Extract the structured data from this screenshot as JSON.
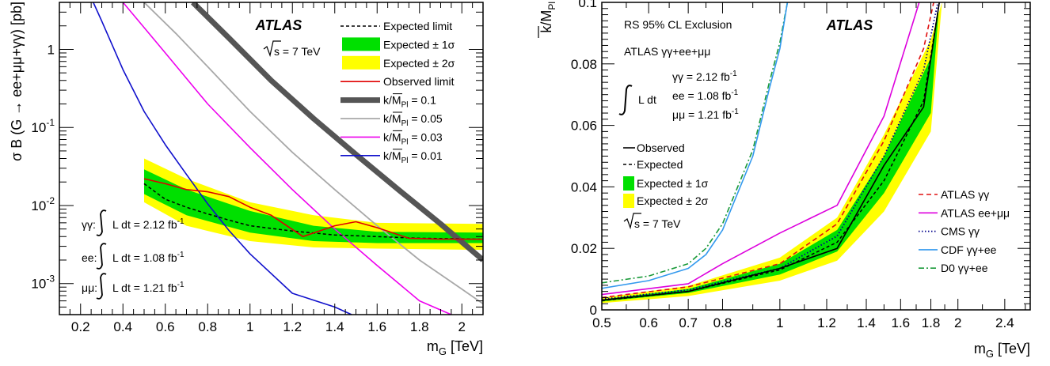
{
  "chart_data": [
    {
      "type": "line",
      "title": "",
      "xlabel": "m",
      "xlabel_sub": "G",
      "xlabel_unit": " [TeV]",
      "ylabel": "σ B (G → ee+μμ+γγ) [pb]",
      "xlim": [
        0.1,
        2.1
      ],
      "ylim": [
        0.0004,
        4
      ],
      "yscale": "log",
      "grid": false,
      "legend_position": "top-right",
      "x_ticks": [
        0.2,
        0.4,
        0.6,
        0.8,
        1,
        1.2,
        1.4,
        1.6,
        1.8,
        2
      ],
      "x_tick_labels": [
        "0.2",
        "0.4",
        "0.6",
        "0.8",
        "1",
        "1.2",
        "1.4",
        "1.6",
        "1.8",
        "2"
      ],
      "y_ticks": [
        {
          "value": 1,
          "base": "1",
          "exp": ""
        },
        {
          "value": 0.1,
          "base": "10",
          "exp": "-1"
        },
        {
          "value": 0.01,
          "base": "10",
          "exp": "-2"
        },
        {
          "value": 0.001,
          "base": "10",
          "exp": "-3"
        }
      ],
      "atlas_label": "ATLAS",
      "energy_label": "s = 7 TeV",
      "lumi_labels": [
        {
          "channel": "γγ:",
          "text": "L dt = 2.12 fb",
          "exp": "-1"
        },
        {
          "channel": "ee:",
          "text": "L dt = 1.08 fb",
          "exp": "-1"
        },
        {
          "channel": "μμ:",
          "text": "L dt = 1.21 fb",
          "exp": "-1"
        }
      ],
      "legend": [
        {
          "label": "Expected limit",
          "style": "dashed"
        },
        {
          "label": "Expected ± 1σ",
          "style": "box-green"
        },
        {
          "label": "Expected ± 2σ",
          "style": "box-yellow"
        },
        {
          "label": "Observed limit",
          "style": "red"
        },
        {
          "label": "k/M",
          "sub": "Pl",
          "suffix": " = 0.1",
          "style": "thick-grey"
        },
        {
          "label": "k/M",
          "sub": "Pl",
          "suffix": " = 0.05",
          "style": "light-grey"
        },
        {
          "label": "k/M",
          "sub": "Pl",
          "suffix": " = 0.03",
          "style": "magenta"
        },
        {
          "label": "k/M",
          "sub": "Pl",
          "suffix": " = 0.01",
          "style": "blue"
        }
      ],
      "band2": {
        "x": [
          0.5,
          0.7,
          1.0,
          1.3,
          1.6,
          2.1
        ],
        "low": [
          0.011,
          0.0055,
          0.0035,
          0.0029,
          0.0028,
          0.0027
        ],
        "high": [
          0.04,
          0.022,
          0.011,
          0.0075,
          0.006,
          0.0058
        ]
      },
      "band1": {
        "x": [
          0.5,
          0.7,
          1.0,
          1.3,
          1.6,
          2.1
        ],
        "low": [
          0.014,
          0.0075,
          0.0045,
          0.0035,
          0.0033,
          0.0033
        ],
        "high": [
          0.029,
          0.016,
          0.0085,
          0.0055,
          0.0046,
          0.0045
        ]
      },
      "series": [
        {
          "name": "Expected limit",
          "x": [
            0.5,
            0.6,
            0.7,
            0.8,
            0.9,
            1.0,
            1.2,
            1.4,
            1.6,
            1.8,
            2.1
          ],
          "y": [
            0.019,
            0.012,
            0.0095,
            0.0078,
            0.0065,
            0.0055,
            0.0047,
            0.0042,
            0.004,
            0.0038,
            0.0037
          ]
        },
        {
          "name": "Observed limit",
          "x": [
            0.5,
            0.6,
            0.7,
            0.8,
            0.9,
            1.0,
            1.1,
            1.25,
            1.4,
            1.5,
            1.6,
            1.75,
            1.9,
            2.1
          ],
          "y": [
            0.022,
            0.019,
            0.016,
            0.015,
            0.013,
            0.0095,
            0.0075,
            0.004,
            0.0055,
            0.0062,
            0.0052,
            0.0038,
            0.0037,
            0.0037
          ]
        },
        {
          "name": "k/M = 0.1",
          "x": [
            0.73,
            0.9,
            1.1,
            1.3,
            1.5,
            1.7,
            1.9,
            2.1
          ],
          "y": [
            4,
            1.4,
            0.4,
            0.13,
            0.045,
            0.016,
            0.0058,
            0.002
          ]
        },
        {
          "name": "k/M = 0.05",
          "x": [
            0.5,
            0.65,
            0.8,
            1.0,
            1.2,
            1.4,
            1.6,
            1.8,
            2.0,
            2.1
          ],
          "y": [
            4,
            1.6,
            0.6,
            0.16,
            0.048,
            0.016,
            0.0055,
            0.002,
            0.00085,
            0.00055
          ]
        },
        {
          "name": "k/M = 0.03",
          "x": [
            0.4,
            0.5,
            0.6,
            0.8,
            1.0,
            1.2,
            1.4,
            1.6,
            1.8,
            1.95
          ],
          "y": [
            4,
            1.9,
            0.9,
            0.2,
            0.055,
            0.016,
            0.005,
            0.0017,
            0.0006,
            0.0004
          ]
        },
        {
          "name": "k/M = 0.01",
          "x": [
            0.26,
            0.3,
            0.4,
            0.5,
            0.6,
            0.7,
            0.8,
            0.9,
            1.0,
            1.2,
            1.4,
            1.48
          ],
          "y": [
            4,
            2.3,
            0.55,
            0.16,
            0.06,
            0.025,
            0.0105,
            0.0048,
            0.0024,
            0.00075,
            0.0005,
            0.0004
          ]
        }
      ]
    },
    {
      "type": "line",
      "title": "",
      "xlabel": "m",
      "xlabel_sub": "G",
      "xlabel_unit": " [TeV]",
      "ylabel": "k/M",
      "ylabel_sub": "Pl",
      "xlim": [
        0.5,
        2.65
      ],
      "ylim": [
        0,
        0.1
      ],
      "xscale": "log",
      "grid": false,
      "x_ticks": [
        0.5,
        0.6,
        0.7,
        0.8,
        1,
        1.2,
        1.4,
        1.6,
        1.8,
        2,
        2.4
      ],
      "x_tick_labels": [
        "0.5",
        "0.6",
        "0.7",
        "0.8",
        "1",
        "1.2",
        "1.4",
        "1.6",
        "1.8",
        "2",
        "2.4"
      ],
      "y_ticks": [
        0,
        0.02,
        0.04,
        0.06,
        0.08,
        0.1
      ],
      "y_tick_labels": [
        "0",
        "0.02",
        "0.04",
        "0.06",
        "0.08",
        "0.1"
      ],
      "atlas_label": "ATLAS",
      "exclusion_label": "RS 95% CL Exclusion",
      "combination_label": "ATLAS γγ+ee+μμ",
      "lumi_prefix": "L dt",
      "lumi_labels": [
        {
          "text": "γγ = 2.12 fb",
          "exp": "-1"
        },
        {
          "text": "ee = 1.08 fb",
          "exp": "-1"
        },
        {
          "text": "μμ = 1.21 fb",
          "exp": "-1"
        }
      ],
      "energy_label": "s = 7 TeV",
      "legend_left": [
        {
          "label": "Observed",
          "style": "solid"
        },
        {
          "label": "Expected",
          "style": "dashed"
        },
        {
          "label": "Expected ± 1σ",
          "style": "box-green"
        },
        {
          "label": "Expected ± 2σ",
          "style": "box-yellow"
        }
      ],
      "legend_right": [
        {
          "label": "ATLAS γγ",
          "style": "red-dashed"
        },
        {
          "label": "ATLAS ee+μμ",
          "style": "magenta"
        },
        {
          "label": "CMS γγ",
          "style": "navy-dotted"
        },
        {
          "label": "CDF γγ+ee",
          "style": "lightblue"
        },
        {
          "label": "D0 γγ+ee",
          "style": "green-dashdot"
        }
      ],
      "band2": {
        "x": [
          0.5,
          0.7,
          1.0,
          1.25,
          1.5,
          1.8,
          1.88
        ],
        "low": [
          0.0022,
          0.0045,
          0.0095,
          0.016,
          0.032,
          0.058,
          0.1
        ],
        "high": [
          0.004,
          0.0078,
          0.017,
          0.03,
          0.057,
          0.088,
          0.1
        ]
      },
      "band1": {
        "x": [
          0.5,
          0.7,
          1.0,
          1.25,
          1.5,
          1.8,
          1.86
        ],
        "low": [
          0.0027,
          0.0055,
          0.0115,
          0.019,
          0.038,
          0.064,
          0.1
        ],
        "high": [
          0.0034,
          0.0068,
          0.015,
          0.026,
          0.05,
          0.082,
          0.1
        ]
      },
      "series": [
        {
          "name": "Observed",
          "x": [
            0.5,
            0.7,
            1.0,
            1.25,
            1.5,
            1.75,
            1.86
          ],
          "y": [
            0.0032,
            0.006,
            0.0135,
            0.02,
            0.047,
            0.066,
            0.1
          ]
        },
        {
          "name": "Expected",
          "x": [
            0.5,
            0.7,
            1.0,
            1.25,
            1.5,
            1.75,
            1.86
          ],
          "y": [
            0.003,
            0.006,
            0.013,
            0.022,
            0.042,
            0.068,
            0.1
          ]
        },
        {
          "name": "ATLAS γγ",
          "x": [
            0.5,
            0.7,
            1.0,
            1.25,
            1.5,
            1.75,
            1.82
          ],
          "y": [
            0.004,
            0.0075,
            0.015,
            0.028,
            0.055,
            0.085,
            0.1
          ]
        },
        {
          "name": "ATLAS ee+μμ",
          "x": [
            0.5,
            0.7,
            0.8,
            1.0,
            1.25,
            1.5,
            1.72
          ],
          "y": [
            0.005,
            0.0085,
            0.015,
            0.025,
            0.034,
            0.063,
            0.1
          ]
        },
        {
          "name": "CMS γγ",
          "x": [
            0.5,
            0.7,
            1.0,
            1.25,
            1.5,
            1.75,
            1.85
          ],
          "y": [
            0.0035,
            0.0065,
            0.0135,
            0.024,
            0.05,
            0.078,
            0.1
          ]
        },
        {
          "name": "CDF γγ+ee",
          "x": [
            0.5,
            0.6,
            0.7,
            0.75,
            0.8,
            0.9,
            0.96,
            1.0,
            1.03
          ],
          "y": [
            0.007,
            0.0095,
            0.0135,
            0.018,
            0.026,
            0.05,
            0.072,
            0.085,
            0.1
          ]
        },
        {
          "name": "D0 γγ+ee",
          "x": [
            0.5,
            0.6,
            0.7,
            0.75,
            0.8,
            0.9,
            0.96,
            1.0,
            1.03
          ],
          "y": [
            0.0088,
            0.011,
            0.015,
            0.02,
            0.028,
            0.052,
            0.074,
            0.087,
            0.1
          ]
        }
      ]
    }
  ]
}
